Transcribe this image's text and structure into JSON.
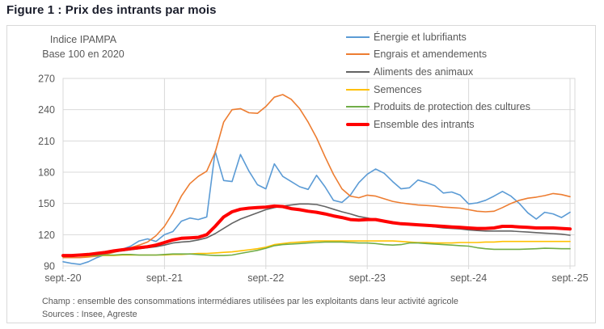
{
  "title": "Figure 1 : Prix des intrants par mois",
  "footer": {
    "champ": "Champ : ensemble des consommations intermédiares utilisées par les exploitants dans leur activité agricole",
    "sources": "Sources : Insee, Agreste"
  },
  "colors": {
    "title_text": "#1b1e2c",
    "axis_text": "#595959",
    "grid": "#d9d9d9",
    "background": "#ffffff"
  },
  "chart_data": {
    "type": "line",
    "title": "Prix des intrants par mois",
    "y_axis_title_line1": "Indice IPAMPA",
    "y_axis_title_line2": "Base 100 en 2020",
    "x_start": "sept-2020",
    "x_end": "sept-2025",
    "x_step": "month",
    "x_tick_labels": [
      "sept.-20",
      "sept.-21",
      "sept.-22",
      "sept.-23",
      "sept.-24",
      "sept.-25"
    ],
    "x_tick_month_indices": [
      0,
      12,
      24,
      36,
      48,
      60
    ],
    "y_ticks": [
      90,
      120,
      150,
      180,
      210,
      240,
      270
    ],
    "ylim": [
      90,
      270
    ],
    "grid": true,
    "legend_position": "top-right",
    "series": [
      {
        "name": "Énergie et lubrifiants",
        "color": "#5B9BD5",
        "width": 1.6,
        "values": [
          94,
          92.5,
          91.5,
          94,
          98,
          101,
          104,
          106,
          109,
          114,
          116,
          113.5,
          120,
          123,
          133,
          136,
          134.5,
          137,
          200,
          172,
          171,
          197,
          181,
          168,
          164,
          188,
          176,
          171,
          166,
          163.5,
          177,
          166,
          153,
          151,
          158,
          170,
          178,
          183,
          179,
          171,
          164,
          165,
          172.5,
          170,
          167,
          160,
          161,
          158,
          149.5,
          150.5,
          153,
          157,
          161.5,
          157,
          150,
          141,
          135,
          141.5,
          140,
          136.5,
          141.5
        ]
      },
      {
        "name": "Engrais et amendements",
        "color": "#ED7D31",
        "width": 1.6,
        "values": [
          98,
          98,
          98,
          98.5,
          99.5,
          101,
          103,
          105,
          107.5,
          110,
          113,
          119,
          128,
          141,
          157,
          169,
          176,
          181,
          199,
          228,
          240,
          241,
          237,
          236.5,
          243,
          252,
          254.5,
          250,
          241,
          228,
          213,
          195,
          178,
          164,
          157,
          155.5,
          158,
          157,
          154.5,
          152,
          150.5,
          149.5,
          148.5,
          148,
          147.5,
          146.5,
          146,
          145.5,
          144,
          142.5,
          142,
          142.5,
          146,
          150,
          153,
          155,
          156,
          157.5,
          159.5,
          158.5,
          156.5
        ]
      },
      {
        "name": "Aliments des animaux",
        "color": "#636363",
        "width": 1.6,
        "values": [
          99.5,
          99.5,
          100,
          100.5,
          101,
          102,
          103.5,
          104.5,
          105.5,
          106.5,
          107.5,
          108.5,
          110,
          112,
          113,
          113.5,
          115,
          117,
          121,
          126,
          131,
          135,
          138,
          141,
          144,
          146,
          147.5,
          148.5,
          149.5,
          149.5,
          149,
          147,
          144.5,
          142,
          140,
          137.5,
          136,
          134.5,
          133.5,
          131.5,
          130.5,
          130,
          129.5,
          128.5,
          127.5,
          126.5,
          126,
          125.5,
          124.5,
          124,
          123.5,
          123.5,
          123.5,
          123.5,
          123,
          122.5,
          122,
          121.5,
          121,
          120.5,
          119.5
        ]
      },
      {
        "name": "Semences",
        "color": "#FFC000",
        "width": 1.6,
        "values": [
          100,
          100,
          99.5,
          99.5,
          100,
          100,
          100,
          100.5,
          100.5,
          100.5,
          100.5,
          100.5,
          100.5,
          101,
          101,
          101.5,
          102,
          102,
          102.5,
          103,
          103.5,
          104.5,
          105.5,
          106.5,
          108,
          110.5,
          111.5,
          112.5,
          113,
          113.5,
          114,
          114,
          114,
          114,
          114,
          114,
          114,
          114,
          114,
          114,
          113.5,
          113,
          112.5,
          112.5,
          112,
          112,
          112,
          112.5,
          112.5,
          112.5,
          113,
          113,
          113.5,
          113.5,
          113.5,
          113.5,
          113.5,
          113.5,
          113.5,
          113.5,
          113.5
        ]
      },
      {
        "name": "Produits de protection des cultures",
        "color": "#70AD47",
        "width": 1.6,
        "values": [
          99,
          99.5,
          100,
          100,
          100,
          100.5,
          100.5,
          101,
          101,
          100.5,
          100.5,
          100.5,
          101,
          101.5,
          101.5,
          101.5,
          101,
          100.5,
          100,
          100,
          100.5,
          102,
          103.5,
          105,
          107,
          109.5,
          110.5,
          111,
          111.5,
          112,
          112.5,
          113,
          113,
          113,
          112.5,
          112,
          112,
          111.5,
          110.5,
          110,
          110.5,
          112,
          112,
          111.5,
          111,
          110.5,
          110,
          109.5,
          109,
          107.5,
          106.5,
          106,
          106,
          106,
          106,
          106.2,
          106.5,
          107,
          106.8,
          106.5,
          106.5
        ]
      },
      {
        "name": "Ensemble des intrants",
        "color": "#FF0000",
        "width": 4,
        "values": [
          100,
          100,
          100.5,
          101,
          102,
          103,
          104.5,
          105.5,
          106.5,
          107.5,
          108.5,
          110,
          112.5,
          115,
          116.5,
          117,
          117.5,
          120,
          128,
          137,
          142,
          144.5,
          145.5,
          146,
          146.5,
          147.5,
          147,
          145,
          144,
          142.5,
          141.5,
          140,
          138,
          136.5,
          134.5,
          134,
          134.5,
          134.5,
          133,
          131.5,
          130.5,
          130,
          129.5,
          129,
          128.5,
          128,
          127.5,
          127,
          126.5,
          126,
          126,
          126.5,
          128,
          128,
          127.5,
          127,
          126.5,
          126.5,
          126.5,
          126,
          125.5
        ]
      }
    ]
  }
}
